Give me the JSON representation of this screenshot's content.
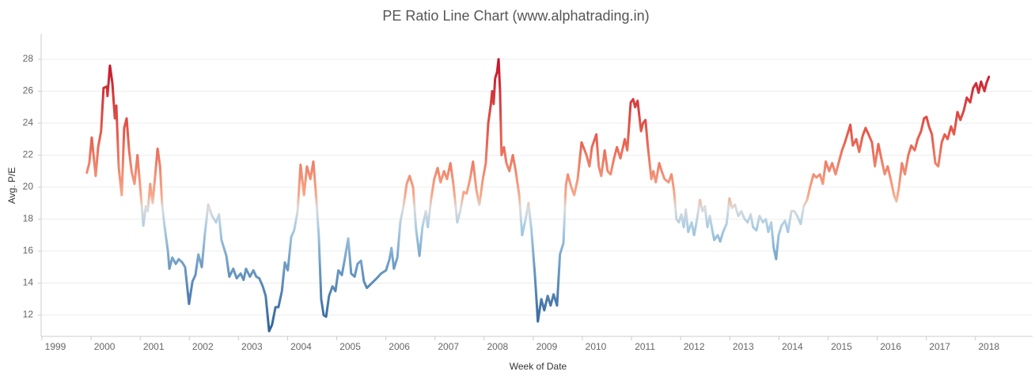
{
  "chart_data": {
    "type": "line",
    "title": "PE Ratio Line Chart (www.alphatrading.in)",
    "x_label": "Week of Date",
    "y_label": "Avg. P/E",
    "xlim": [
      1998.71,
      2018.89
    ],
    "xticks": [
      1999,
      2000,
      2001,
      2002,
      2003,
      2004,
      2005,
      2006,
      2007,
      2008,
      2009,
      2010,
      2011,
      2012,
      2013,
      2014,
      2015,
      2016,
      2017,
      2018
    ],
    "ylim": [
      10.67,
      29.58
    ],
    "yticks": [
      12,
      14,
      16,
      18,
      20,
      22,
      24,
      26,
      28
    ],
    "grid": true,
    "color_stops": [
      {
        "value": 11,
        "color": "#30619a"
      },
      {
        "value": 15,
        "color": "#6b9ac4"
      },
      {
        "value": 17.5,
        "color": "#aacde3"
      },
      {
        "value": 18.7,
        "color": "#dcdcdc"
      },
      {
        "value": 19.5,
        "color": "#f7a889"
      },
      {
        "value": 23,
        "color": "#e8604f"
      },
      {
        "value": 28,
        "color": "#c4142b"
      }
    ],
    "x": [
      1999.64,
      1999.69,
      1999.74,
      1999.82,
      1999.87,
      1999.93,
      1999.98,
      2000.05,
      2000.06,
      2000.11,
      2000.16,
      2000.21,
      2000.24,
      2000.29,
      2000.35,
      2000.4,
      2000.45,
      2000.5,
      2000.55,
      2000.61,
      2000.67,
      2000.74,
      2000.79,
      2000.84,
      2000.88,
      2000.93,
      2000.98,
      2001.08,
      2001.13,
      2001.17,
      2001.22,
      2001.29,
      2001.32,
      2001.38,
      2001.45,
      2001.51,
      2001.58,
      2001.64,
      2001.72,
      2001.79,
      2001.85,
      2001.91,
      2001.98,
      2002.04,
      2002.11,
      2002.19,
      2002.27,
      2002.33,
      2002.38,
      2002.48,
      2002.54,
      2002.62,
      2002.69,
      2002.77,
      2002.83,
      2002.88,
      2002.96,
      2003.03,
      2003.09,
      2003.15,
      2003.22,
      2003.28,
      2003.35,
      2003.41,
      2003.48,
      2003.54,
      2003.61,
      2003.67,
      2003.73,
      2003.8,
      2003.86,
      2003.93,
      2003.99,
      2004.06,
      2004.12,
      2004.19,
      2004.25,
      2004.31,
      2004.36,
      2004.41,
      2004.46,
      2004.51,
      2004.57,
      2004.64,
      2004.7,
      2004.76,
      2004.83,
      2004.89,
      2004.96,
      2005.02,
      2005.09,
      2005.15,
      2005.22,
      2005.28,
      2005.34,
      2005.44,
      2005.54,
      2005.63,
      2005.73,
      2005.8,
      2005.84,
      2005.89,
      2005.96,
      2006.02,
      2006.09,
      2006.15,
      2006.21,
      2006.28,
      2006.34,
      2006.41,
      2006.47,
      2006.54,
      2006.58,
      2006.65,
      2006.71,
      2006.78,
      2006.84,
      2006.91,
      2006.97,
      2007.04,
      2007.1,
      2007.18,
      2007.24,
      2007.31,
      2007.37,
      2007.44,
      2007.5,
      2007.57,
      2007.63,
      2007.7,
      2007.76,
      2007.81,
      2007.86,
      2007.89,
      2007.92,
      2007.95,
      2007.99,
      2008.02,
      2008.05,
      2008.08,
      2008.13,
      2008.18,
      2008.24,
      2008.31,
      2008.37,
      2008.44,
      2008.5,
      2008.57,
      2008.63,
      2008.69,
      2008.76,
      2008.82,
      2008.89,
      2008.95,
      2009.02,
      2009.08,
      2009.14,
      2009.21,
      2009.27,
      2009.34,
      2009.39,
      2009.43,
      2009.5,
      2009.56,
      2009.63,
      2009.71,
      2009.81,
      2009.87,
      2009.92,
      2010.01,
      2010.06,
      2010.11,
      2010.18,
      2010.24,
      2010.3,
      2010.37,
      2010.43,
      2010.5,
      2010.59,
      2010.64,
      2010.71,
      2010.76,
      2010.8,
      2010.85,
      2010.92,
      2010.96,
      2011.01,
      2011.06,
      2011.13,
      2011.17,
      2011.22,
      2011.29,
      2011.34,
      2011.4,
      2011.48,
      2011.54,
      2011.59,
      2011.64,
      2011.69,
      2011.74,
      2011.79,
      2011.83,
      2011.88,
      2011.95,
      2012.0,
      2012.06,
      2012.12,
      2012.17,
      2012.22,
      2012.27,
      2012.32,
      2012.37,
      2012.41,
      2012.48,
      2012.53,
      2012.59,
      2012.66,
      2012.72,
      2012.77,
      2012.83,
      2012.9,
      2012.96,
      2013.03,
      2013.09,
      2013.15,
      2013.2,
      2013.27,
      2013.33,
      2013.4,
      2013.46,
      2013.51,
      2013.57,
      2013.62,
      2013.67,
      2013.72,
      2013.78,
      2013.85,
      2013.91,
      2013.98,
      2014.04,
      2014.1,
      2014.17,
      2014.23,
      2014.3,
      2014.36,
      2014.43,
      2014.49,
      2014.56,
      2014.62,
      2014.68,
      2014.75,
      2014.81,
      2014.88,
      2014.94,
      2015.01,
      2015.07,
      2015.14,
      2015.18,
      2015.23,
      2015.3,
      2015.36,
      2015.43,
      2015.49,
      2015.55,
      2015.62,
      2015.68,
      2015.75,
      2015.81,
      2015.88,
      2015.94,
      2016.0,
      2016.07,
      2016.12,
      2016.17,
      2016.23,
      2016.29,
      2016.36,
      2016.42,
      2016.49,
      2016.55,
      2016.62,
      2016.68,
      2016.73,
      2016.78,
      2016.84,
      2016.91,
      2016.97,
      2017.04,
      2017.1,
      2017.16,
      2017.23,
      2017.29,
      2017.36,
      2017.42,
      2017.49,
      2017.55,
      2017.62,
      2017.68,
      2017.74,
      2017.79,
      2017.84,
      2017.91,
      2017.95,
      2018.0
    ],
    "values": [
      20.9,
      21.5,
      23.1,
      20.7,
      22.5,
      23.5,
      26.2,
      26.3,
      25.7,
      27.6,
      26.5,
      24.3,
      25.1,
      21.2,
      19.5,
      23.7,
      24.3,
      22.3,
      21.0,
      20.2,
      22.0,
      19.5,
      17.6,
      18.8,
      18.5,
      20.2,
      19.0,
      22.4,
      21.3,
      19.0,
      17.6,
      16.0,
      14.9,
      15.6,
      15.2,
      15.5,
      15.3,
      15.0,
      12.7,
      14.1,
      14.5,
      15.8,
      15.0,
      17.0,
      18.9,
      18.2,
      17.8,
      18.3,
      16.7,
      15.7,
      14.4,
      14.9,
      14.3,
      14.6,
      14.2,
      14.9,
      14.4,
      14.8,
      14.4,
      14.3,
      13.8,
      13.2,
      11.0,
      11.4,
      12.5,
      12.5,
      13.5,
      15.3,
      14.8,
      16.9,
      17.3,
      18.5,
      21.4,
      19.5,
      21.3,
      20.5,
      21.6,
      19.3,
      17.0,
      13.0,
      12.0,
      11.9,
      13.2,
      13.8,
      13.5,
      14.8,
      14.5,
      15.5,
      16.8,
      14.6,
      14.4,
      15.2,
      15.4,
      14.1,
      13.7,
      14.0,
      14.3,
      14.6,
      14.8,
      15.5,
      16.2,
      14.9,
      15.6,
      17.8,
      18.9,
      20.2,
      20.7,
      20.0,
      17.4,
      15.7,
      17.5,
      18.5,
      17.5,
      19.3,
      20.5,
      21.2,
      20.3,
      21.0,
      20.5,
      21.5,
      20.2,
      17.8,
      18.5,
      19.7,
      19.6,
      20.5,
      21.6,
      19.8,
      18.9,
      20.5,
      21.5,
      24.0,
      25.1,
      26.0,
      25.2,
      26.8,
      27.2,
      28.0,
      26.0,
      22.0,
      22.5,
      21.5,
      21.0,
      22.0,
      21.0,
      19.5,
      17.0,
      18.0,
      19.0,
      17.3,
      14.5,
      11.6,
      13.0,
      12.3,
      13.2,
      12.6,
      13.3,
      12.6,
      15.8,
      16.5,
      20.1,
      20.8,
      20.0,
      19.5,
      20.5,
      22.8,
      22.0,
      21.3,
      22.5,
      23.3,
      21.3,
      20.7,
      22.3,
      21.0,
      20.8,
      21.8,
      22.5,
      21.8,
      23.0,
      22.3,
      25.3,
      25.5,
      25.0,
      25.4,
      23.5,
      24.0,
      24.2,
      22.5,
      20.5,
      21.0,
      20.3,
      21.5,
      21.0,
      20.5,
      20.3,
      20.8,
      19.8,
      18.0,
      17.8,
      18.3,
      17.5,
      18.6,
      17.2,
      17.8,
      17.0,
      18.0,
      19.2,
      18.5,
      18.8,
      17.5,
      18.2,
      17.3,
      16.7,
      17.0,
      16.6,
      17.2,
      17.7,
      19.3,
      18.7,
      18.9,
      18.2,
      18.5,
      18.0,
      17.8,
      18.3,
      17.5,
      17.3,
      18.2,
      17.8,
      18.0,
      17.2,
      17.8,
      16.2,
      15.5,
      17.0,
      17.6,
      17.9,
      17.2,
      18.5,
      18.5,
      18.2,
      17.7,
      18.8,
      19.2,
      20.0,
      20.8,
      20.6,
      20.8,
      20.2,
      21.6,
      21.0,
      21.5,
      20.8,
      21.5,
      22.3,
      22.8,
      23.5,
      23.9,
      22.6,
      23.0,
      22.2,
      23.2,
      23.7,
      23.3,
      22.8,
      21.3,
      22.7,
      21.8,
      20.8,
      21.3,
      20.5,
      19.5,
      19.1,
      20.0,
      21.5,
      20.8,
      22.0,
      22.6,
      22.3,
      23.0,
      23.5,
      24.3,
      24.4,
      23.8,
      23.3,
      21.5,
      21.3,
      22.8,
      23.3,
      23.0,
      23.8,
      23.3,
      24.7,
      24.2,
      24.8,
      25.6,
      25.3,
      26.2,
      26.5,
      25.9,
      26.6,
      26.0,
      26.5,
      26.9
    ]
  }
}
